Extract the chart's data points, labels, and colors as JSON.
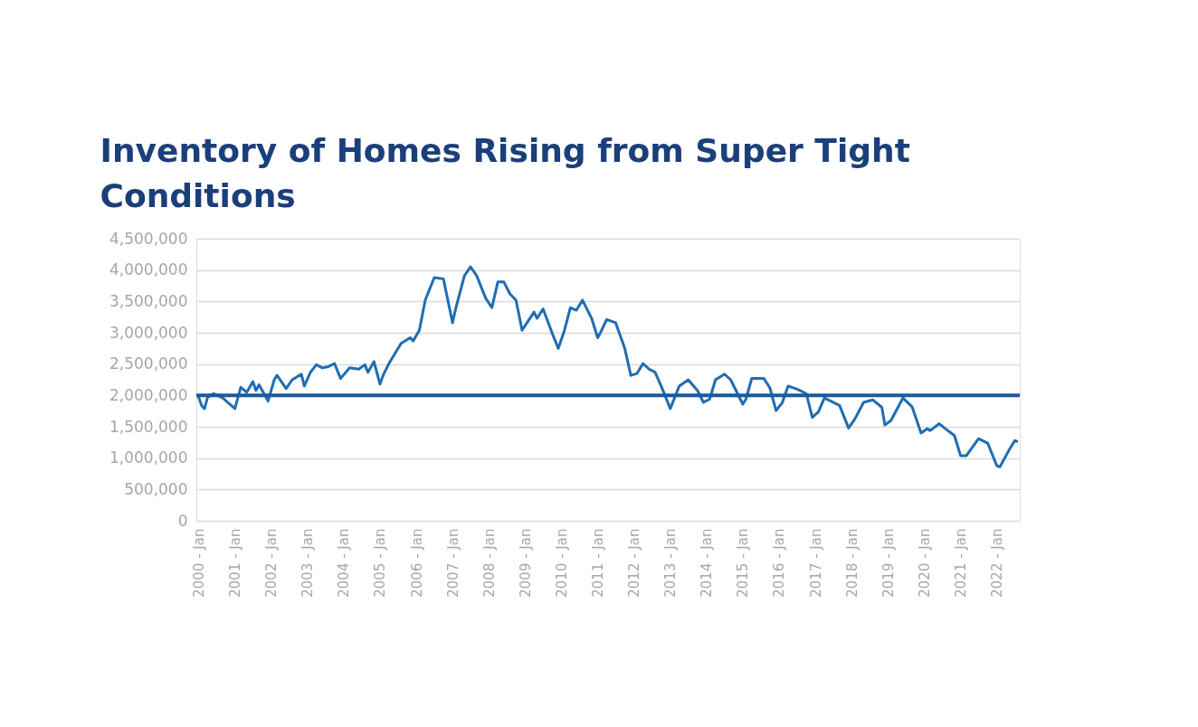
{
  "chart_data": {
    "type": "line",
    "title": "Inventory of Homes Rising from Super Tight Conditions",
    "x": [
      "2000-01",
      "2000-02",
      "2000-03",
      "2000-04",
      "2000-06",
      "2000-09",
      "2001-01",
      "2001-03",
      "2001-05",
      "2001-07",
      "2001-08",
      "2001-09",
      "2001-12",
      "2002-02",
      "2002-03",
      "2002-06",
      "2002-08",
      "2002-11",
      "2002-12",
      "2003-02",
      "2003-04",
      "2003-06",
      "2003-08",
      "2003-10",
      "2003-12",
      "2004-03",
      "2004-06",
      "2004-08",
      "2004-09",
      "2004-11",
      "2005-01",
      "2005-02",
      "2005-04",
      "2005-08",
      "2005-11",
      "2005-12",
      "2006-02",
      "2006-04",
      "2006-07",
      "2006-10",
      "2007-01",
      "2007-02",
      "2007-05",
      "2007-07",
      "2007-09",
      "2007-12",
      "2008-02",
      "2008-04",
      "2008-06",
      "2008-08",
      "2008-10",
      "2008-12",
      "2009-02",
      "2009-04",
      "2009-05",
      "2009-07",
      "2009-10",
      "2009-12",
      "2010-02",
      "2010-04",
      "2010-06",
      "2010-08",
      "2010-11",
      "2011-01",
      "2011-02",
      "2011-04",
      "2011-07",
      "2011-10",
      "2011-12",
      "2012-02",
      "2012-04",
      "2012-06",
      "2012-08",
      "2012-10",
      "2013-01",
      "2013-04",
      "2013-07",
      "2013-10",
      "2013-12",
      "2014-02",
      "2014-04",
      "2014-07",
      "2014-09",
      "2015-01",
      "2015-02",
      "2015-04",
      "2015-08",
      "2015-10",
      "2015-12",
      "2016-02",
      "2016-04",
      "2016-07",
      "2016-10",
      "2016-12",
      "2017-02",
      "2017-04",
      "2017-09",
      "2017-12",
      "2018-02",
      "2018-05",
      "2018-08",
      "2018-11",
      "2018-12",
      "2019-02",
      "2019-06",
      "2019-09",
      "2019-12",
      "2020-02",
      "2020-03",
      "2020-06",
      "2020-08",
      "2020-11",
      "2021-01",
      "2021-03",
      "2021-07",
      "2021-10",
      "2022-01",
      "2022-02",
      "2022-05",
      "2022-07",
      "2022-08"
    ],
    "series": [
      {
        "color": "#1f6db3",
        "values": [
          1980000,
          1840000,
          1790000,
          1970000,
          2030000,
          1960000,
          1790000,
          2130000,
          2050000,
          2220000,
          2080000,
          2170000,
          1910000,
          2250000,
          2320000,
          2110000,
          2250000,
          2340000,
          2150000,
          2370000,
          2490000,
          2440000,
          2460000,
          2510000,
          2270000,
          2440000,
          2420000,
          2490000,
          2370000,
          2540000,
          2180000,
          2320000,
          2510000,
          2830000,
          2920000,
          2870000,
          3040000,
          3520000,
          3880000,
          3860000,
          3160000,
          3380000,
          3910000,
          4050000,
          3910000,
          3550000,
          3400000,
          3810000,
          3810000,
          3620000,
          3520000,
          3040000,
          3190000,
          3330000,
          3230000,
          3380000,
          2990000,
          2750000,
          3040000,
          3400000,
          3360000,
          3520000,
          3230000,
          2920000,
          3010000,
          3210000,
          3160000,
          2750000,
          2320000,
          2350000,
          2510000,
          2420000,
          2370000,
          2150000,
          1790000,
          2150000,
          2250000,
          2080000,
          1890000,
          1940000,
          2250000,
          2340000,
          2250000,
          1860000,
          1940000,
          2270000,
          2270000,
          2120000,
          1760000,
          1880000,
          2150000,
          2100000,
          2030000,
          1650000,
          1740000,
          1960000,
          1840000,
          1480000,
          1620000,
          1890000,
          1930000,
          1810000,
          1530000,
          1600000,
          1960000,
          1820000,
          1400000,
          1470000,
          1440000,
          1550000,
          1470000,
          1360000,
          1040000,
          1040000,
          1310000,
          1240000,
          880000,
          860000,
          1120000,
          1280000,
          1260000
        ]
      }
    ],
    "xlim": [
      "1999-12-10",
      "2022-08-20"
    ],
    "xticks": [
      {
        "value": "2000-01",
        "label": "2000 - Jan"
      },
      {
        "value": "2001-01",
        "label": "2001 - Jan"
      },
      {
        "value": "2002-01",
        "label": "2002 - Jan"
      },
      {
        "value": "2003-01",
        "label": "2003 - Jan"
      },
      {
        "value": "2004-01",
        "label": "2004 - Jan"
      },
      {
        "value": "2005-01",
        "label": "2005 - Jan"
      },
      {
        "value": "2006-01",
        "label": "2006 - Jan"
      },
      {
        "value": "2007-01",
        "label": "2007 - Jan"
      },
      {
        "value": "2008-01",
        "label": "2008 - Jan"
      },
      {
        "value": "2009-01",
        "label": "2009 - Jan"
      },
      {
        "value": "2010-01",
        "label": "2010 - Jan"
      },
      {
        "value": "2011-01",
        "label": "2011 - Jan"
      },
      {
        "value": "2012-01",
        "label": "2012 - Jan"
      },
      {
        "value": "2013-01",
        "label": "2013 - Jan"
      },
      {
        "value": "2014-01",
        "label": "2014 - Jan"
      },
      {
        "value": "2015-01",
        "label": "2015 - Jan"
      },
      {
        "value": "2016-01",
        "label": "2016 - Jan"
      },
      {
        "value": "2017-01",
        "label": "2017 - Jan"
      },
      {
        "value": "2018-01",
        "label": "2018 - Jan"
      },
      {
        "value": "2019-01",
        "label": "2019 - Jan"
      },
      {
        "value": "2020-01",
        "label": "2020 - Jan"
      },
      {
        "value": "2021-01",
        "label": "2021 - Jan"
      },
      {
        "value": "2022-01",
        "label": "2022 - Jan"
      }
    ],
    "ylim": [
      0,
      4500000
    ],
    "yticks": [
      0,
      {
        "value": 500000,
        "label": "500,000"
      },
      {
        "value": 1000000,
        "label": "1,000,000"
      },
      {
        "value": 1500000,
        "label": "1,500,000"
      },
      {
        "value": 2000000,
        "label": "2,000,000"
      },
      {
        "value": 2500000,
        "label": "2,500,000"
      },
      {
        "value": 3000000,
        "label": "3,000,000"
      },
      {
        "value": 3500000,
        "label": "3,500,000"
      },
      {
        "value": 4000000,
        "label": "4,000,000"
      },
      {
        "value": 4500000,
        "label": "4,500,000"
      }
    ],
    "ref_lines": [
      {
        "axis": "y",
        "value": 2000000,
        "color": "#1a5a9e"
      }
    ],
    "grid": "y"
  }
}
